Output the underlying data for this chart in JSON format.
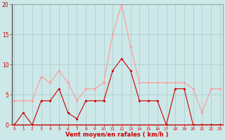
{
  "x": [
    0,
    1,
    2,
    3,
    4,
    5,
    6,
    7,
    8,
    9,
    10,
    11,
    12,
    13,
    14,
    15,
    16,
    17,
    18,
    19,
    20,
    21,
    22,
    23
  ],
  "wind_avg": [
    0,
    2,
    0,
    4,
    4,
    6,
    2,
    1,
    4,
    4,
    4,
    9,
    11,
    9,
    4,
    4,
    4,
    0,
    6,
    6,
    0,
    0,
    0,
    0
  ],
  "wind_gust": [
    4,
    4,
    4,
    8,
    7,
    9,
    7,
    4,
    6,
    6,
    7,
    15,
    20,
    13,
    7,
    7,
    7,
    7,
    7,
    7,
    6,
    2,
    6,
    6
  ],
  "bg_color": "#cde8e8",
  "grid_color": "#aac8c8",
  "avg_color": "#cc0000",
  "gust_color": "#ff9999",
  "xlabel": "Vent moyen/en rafales ( km/h )",
  "xlabel_color": "#cc0000",
  "tick_color": "#cc0000",
  "ylim": [
    0,
    20
  ],
  "yticks": [
    0,
    5,
    10,
    15,
    20
  ],
  "xticks": [
    0,
    1,
    2,
    3,
    4,
    5,
    6,
    7,
    8,
    9,
    10,
    11,
    12,
    13,
    14,
    15,
    16,
    17,
    18,
    19,
    20,
    21,
    22,
    23
  ]
}
